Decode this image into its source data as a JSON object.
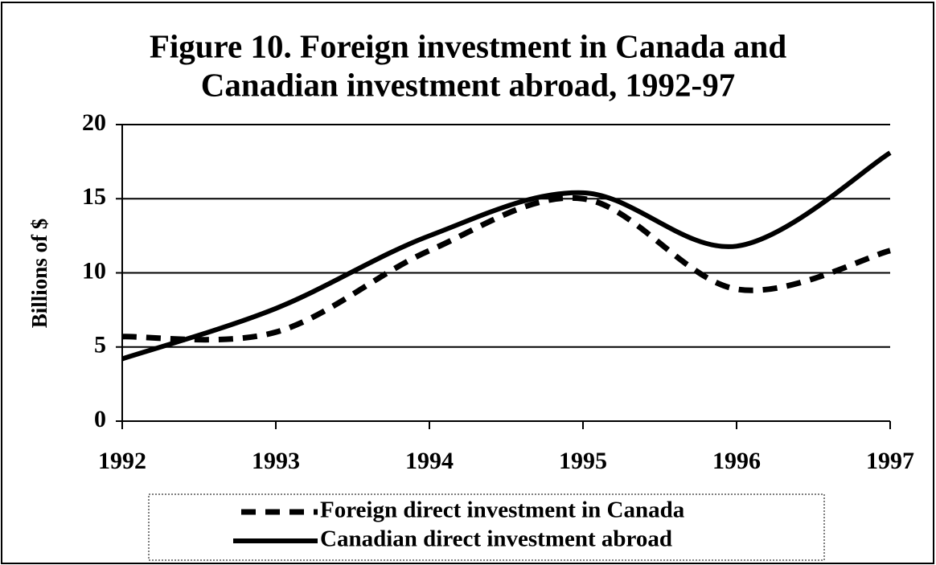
{
  "chart_data": {
    "type": "line",
    "title": [
      "Figure 10. Foreign investment in Canada and",
      "Canadian investment abroad, 1992-97"
    ],
    "y_label": "Billions of $",
    "x": [
      1992,
      1993,
      1994,
      1995,
      1996,
      1997
    ],
    "xlim": [
      1992,
      1997
    ],
    "xticks": [
      1992,
      1993,
      1994,
      1995,
      1996,
      1997
    ],
    "ylim": [
      0,
      20
    ],
    "yticks": [
      0,
      5,
      10,
      15,
      20
    ],
    "grid": true,
    "series": [
      {
        "name": "Foreign direct investment in Canada",
        "color": "#000000",
        "dash": true,
        "values": [
          5.7,
          6.0,
          11.5,
          15.0,
          8.9,
          11.5
        ]
      },
      {
        "name": "Canadian direct investment abroad",
        "color": "#000000",
        "dash": false,
        "values": [
          4.2,
          7.6,
          12.5,
          15.4,
          11.8,
          18.1
        ]
      }
    ]
  }
}
